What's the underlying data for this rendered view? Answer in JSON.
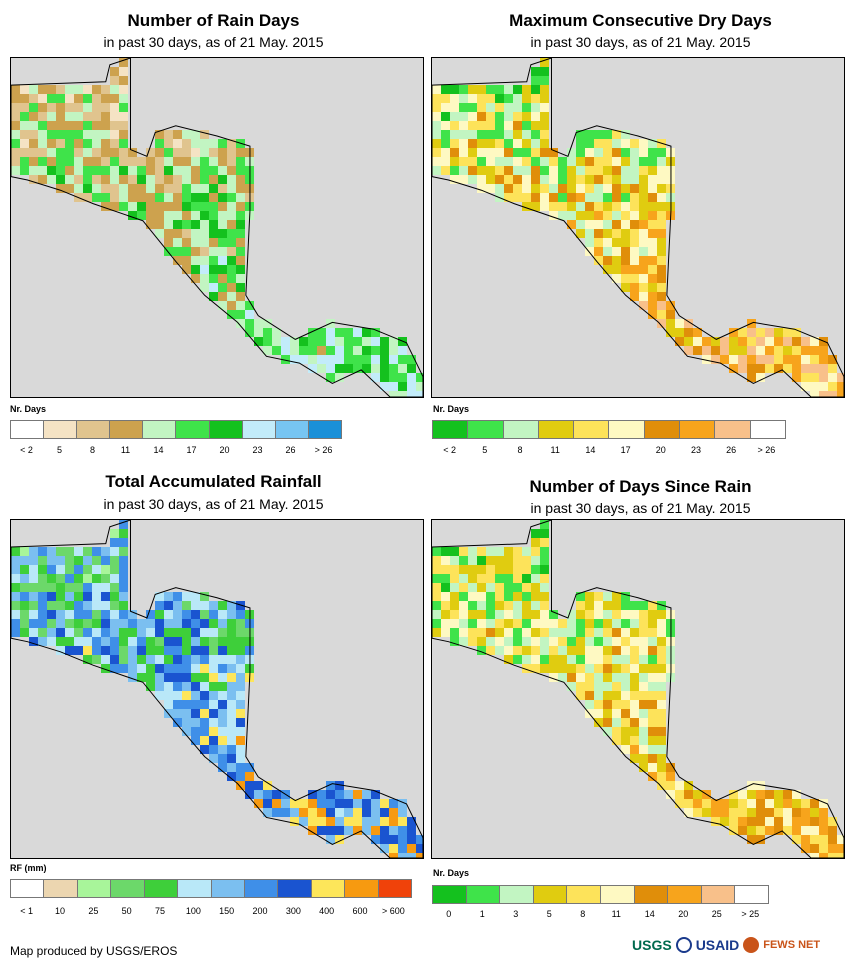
{
  "panels": [
    {
      "title": "Number of Rain Days",
      "subtitle": "in past 30 days, as of 21 May. 2015",
      "legend_title": "Nr. Days",
      "legend_colors": [
        "#ffffff",
        "#f5e3c4",
        "#e0c48e",
        "#cda24e",
        "#c2f5c2",
        "#3fe34a",
        "#14c11e",
        "#c2ecfa",
        "#77c5f2",
        "#1a90d8"
      ],
      "legend_labels": [
        "< 2",
        "5",
        "8",
        "11",
        "14",
        "17",
        "20",
        "23",
        "26",
        "> 26"
      ]
    },
    {
      "title": "Maximum Consecutive Dry Days",
      "subtitle": "in past 30 days, as of 21 May. 2015",
      "legend_title": "Nr. Days",
      "legend_colors": [
        "#14c11e",
        "#3fe34a",
        "#c2f5c2",
        "#e0cc10",
        "#fde35a",
        "#fef9c2",
        "#e08e0a",
        "#f7a41c",
        "#f8c08a",
        "#ffffff"
      ],
      "legend_labels": [
        "< 2",
        "5",
        "8",
        "11",
        "14",
        "17",
        "20",
        "23",
        "26",
        "> 26"
      ]
    },
    {
      "title": "Total Accumulated Rainfall",
      "subtitle": "in past 30 days, as of 21 May. 2015",
      "legend_title": "RF (mm)",
      "legend_colors": [
        "#ffffff",
        "#ecd6b0",
        "#a8f59a",
        "#6cd86a",
        "#3ecf3a",
        "#b9e8f8",
        "#7bbff0",
        "#3f8fe8",
        "#1a54d0",
        "#fde65a",
        "#f79a10",
        "#f0420a"
      ],
      "legend_labels": [
        "< 1",
        "10",
        "25",
        "50",
        "75",
        "100",
        "150",
        "200",
        "300",
        "400",
        "600",
        "> 600"
      ]
    },
    {
      "title": "Number of Days Since Rain",
      "subtitle": "in past 30 days, as of 21 May. 2015",
      "legend_title": "Nr. Days",
      "legend_colors": [
        "#14c11e",
        "#3fe34a",
        "#c2f5c2",
        "#e0cc10",
        "#fde35a",
        "#fef9c2",
        "#e08e0a",
        "#f7a41c",
        "#f8c08a",
        "#ffffff"
      ],
      "legend_labels": [
        "0",
        "1",
        "3",
        "5",
        "8",
        "11",
        "14",
        "20",
        "25",
        "> 25"
      ]
    }
  ],
  "footer": {
    "credit": "Map produced by USGS/EROS"
  },
  "logos": {
    "usgs": "USGS",
    "usaid": "USAID",
    "fewsnet": "FEWS NET"
  }
}
